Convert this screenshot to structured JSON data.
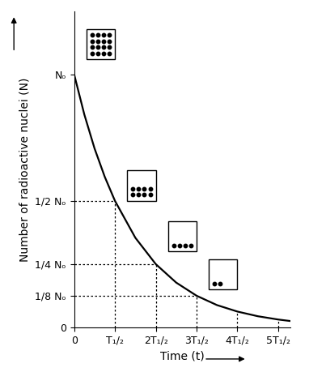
{
  "chart_data": {
    "type": "line",
    "x_label": "Time (t)",
    "y_label": "Number of radioactive nuclei (N)",
    "x": [
      0,
      0.25,
      0.5,
      0.75,
      1,
      1.5,
      2,
      2.5,
      3,
      3.5,
      4,
      4.5,
      5,
      5.3
    ],
    "values": [
      1,
      0.841,
      0.707,
      0.595,
      0.5,
      0.354,
      0.25,
      0.177,
      0.125,
      0.088,
      0.0625,
      0.044,
      0.031,
      0.025
    ],
    "color": "#000000",
    "xlim": [
      0,
      5.3
    ],
    "ylim": [
      0,
      1.25
    ],
    "xticks": [
      0,
      {
        "value": 1,
        "label": "T₁/₂"
      },
      {
        "value": 2,
        "label": "2T₁/₂"
      },
      {
        "value": 3,
        "label": "3T₁/₂"
      },
      {
        "value": 4,
        "label": "4T₁/₂"
      },
      {
        "value": 5,
        "label": "5T₁/₂"
      }
    ],
    "yticks": [
      0,
      {
        "value": 0.125,
        "label": "1/8 Nₒ"
      },
      {
        "value": 0.25,
        "label": "1/4 Nₒ"
      },
      {
        "value": 0.5,
        "label": "1/2 Nₒ"
      },
      {
        "value": 1,
        "label": "Nₒ"
      }
    ],
    "grid": false
  }
}
